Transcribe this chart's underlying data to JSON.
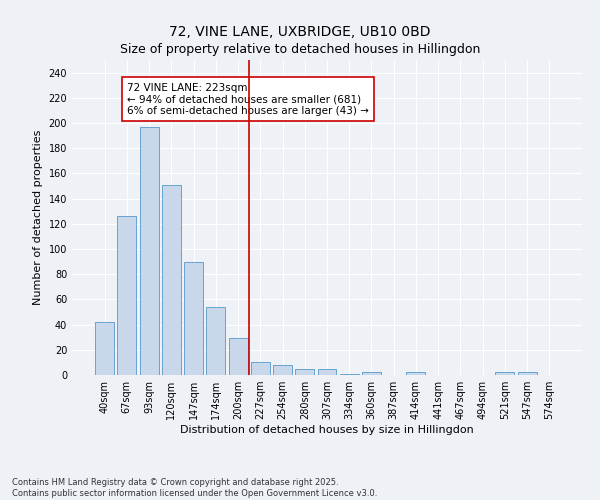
{
  "title": "72, VINE LANE, UXBRIDGE, UB10 0BD",
  "subtitle": "Size of property relative to detached houses in Hillingdon",
  "xlabel": "Distribution of detached houses by size in Hillingdon",
  "ylabel": "Number of detached properties",
  "categories": [
    "40sqm",
    "67sqm",
    "93sqm",
    "120sqm",
    "147sqm",
    "174sqm",
    "200sqm",
    "227sqm",
    "254sqm",
    "280sqm",
    "307sqm",
    "334sqm",
    "360sqm",
    "387sqm",
    "414sqm",
    "441sqm",
    "467sqm",
    "494sqm",
    "521sqm",
    "547sqm",
    "574sqm"
  ],
  "values": [
    42,
    126,
    197,
    151,
    90,
    54,
    29,
    10,
    8,
    5,
    5,
    1,
    2,
    0,
    2,
    0,
    0,
    0,
    2,
    2,
    0
  ],
  "bar_color": "#c8d8ea",
  "bar_edgecolor": "#5599cc",
  "vline_x_index": 7,
  "vline_color": "#cc0000",
  "annotation_text": "72 VINE LANE: 223sqm\n← 94% of detached houses are smaller (681)\n6% of semi-detached houses are larger (43) →",
  "annotation_box_edgecolor": "#cc0000",
  "ylim": [
    0,
    250
  ],
  "yticks": [
    0,
    20,
    40,
    60,
    80,
    100,
    120,
    140,
    160,
    180,
    200,
    220,
    240
  ],
  "footnote": "Contains HM Land Registry data © Crown copyright and database right 2025.\nContains public sector information licensed under the Open Government Licence v3.0.",
  "background_color": "#eef2f7",
  "plot_background": "#eef2f7",
  "title_fontsize": 10,
  "subtitle_fontsize": 9,
  "axis_label_fontsize": 8,
  "tick_fontsize": 7,
  "annotation_fontsize": 7.5,
  "footnote_fontsize": 6
}
